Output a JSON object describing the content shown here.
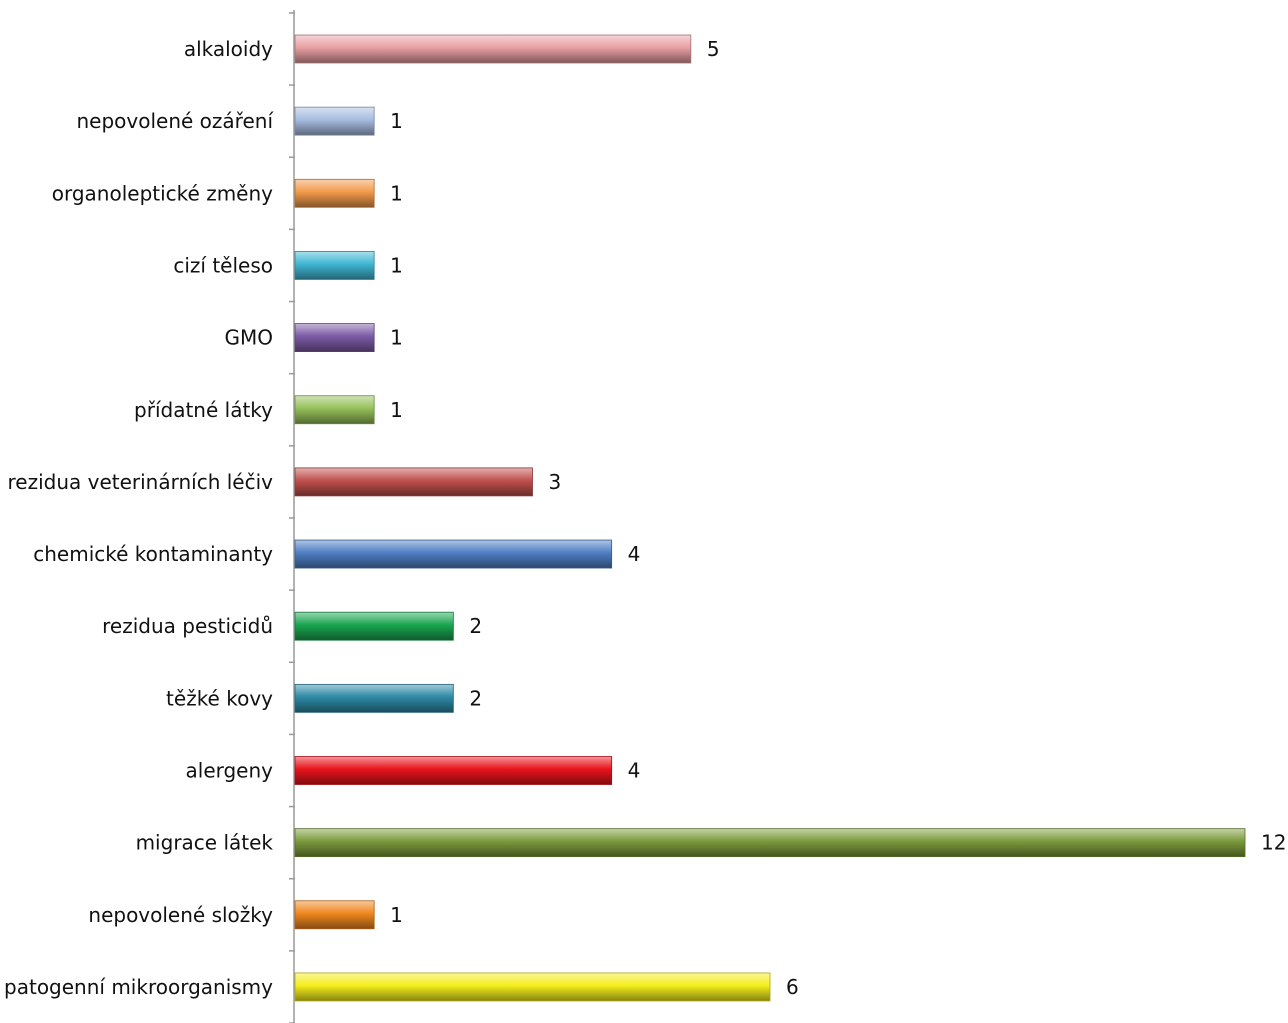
{
  "chart_data": {
    "type": "bar",
    "orientation": "horizontal",
    "title": "",
    "xlabel": "",
    "ylabel": "",
    "xlim": [
      0,
      12
    ],
    "grid": false,
    "legend": "none",
    "categories": [
      "alkaloidy",
      "nepovolené ozáření",
      "organoleptické změny",
      "cizí těleso",
      "GMO",
      "přídatné látky",
      "rezidua veterinárních léčiv",
      "chemické kontaminanty",
      "rezidua pesticidů",
      "těžké kovy",
      "alergeny",
      "migrace látek",
      "nepovolené složky",
      "patogenní mikroorganismy"
    ],
    "values": [
      5,
      1,
      1,
      1,
      1,
      1,
      3,
      4,
      2,
      2,
      4,
      12,
      1,
      6
    ],
    "colors": [
      "#e8a0a4",
      "#a7bde0",
      "#f29a4a",
      "#3fb6d3",
      "#7d5aa6",
      "#96c05b",
      "#c0504d",
      "#4f7fc4",
      "#1aa650",
      "#2e8aa6",
      "#e8141b",
      "#7b9a3b",
      "#f0871f",
      "#f5ee1c"
    ]
  }
}
